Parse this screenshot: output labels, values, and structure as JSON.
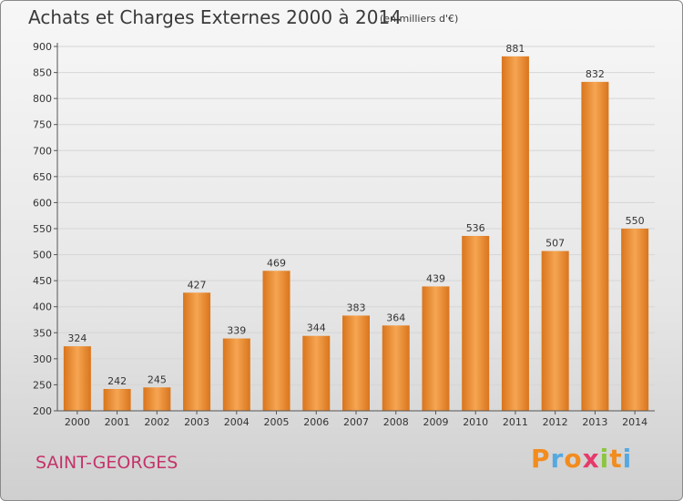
{
  "title": "Achats et Charges Externes 2000 à 2014",
  "unit_note": "(en milliers d'€)",
  "city": "SAINT-GEORGES",
  "brand": {
    "letters": [
      "P",
      "r",
      "o",
      "x",
      "i",
      "t",
      "i"
    ],
    "colors": [
      "#f28c1e",
      "#56a9e0",
      "#f28c1e",
      "#e63a6a",
      "#8cc63f",
      "#f28c1e",
      "#56a9e0"
    ]
  },
  "colors": {
    "bar_light": "#f6a552",
    "bar_dark": "#d9751c",
    "grid": "#d6d6d6",
    "axis": "#555555",
    "text": "#333333"
  },
  "chart_data": {
    "type": "bar",
    "categories": [
      "2000",
      "2001",
      "2002",
      "2003",
      "2004",
      "2005",
      "2006",
      "2007",
      "2008",
      "2009",
      "2010",
      "2011",
      "2012",
      "2013",
      "2014"
    ],
    "values": [
      324,
      242,
      245,
      427,
      339,
      469,
      344,
      383,
      364,
      439,
      536,
      881,
      507,
      832,
      550
    ],
    "ylim": [
      200,
      900
    ],
    "yticks": [
      200,
      250,
      300,
      350,
      400,
      450,
      500,
      550,
      600,
      650,
      700,
      750,
      800,
      850,
      900
    ],
    "grid": true,
    "xlabel": "",
    "ylabel": ""
  }
}
